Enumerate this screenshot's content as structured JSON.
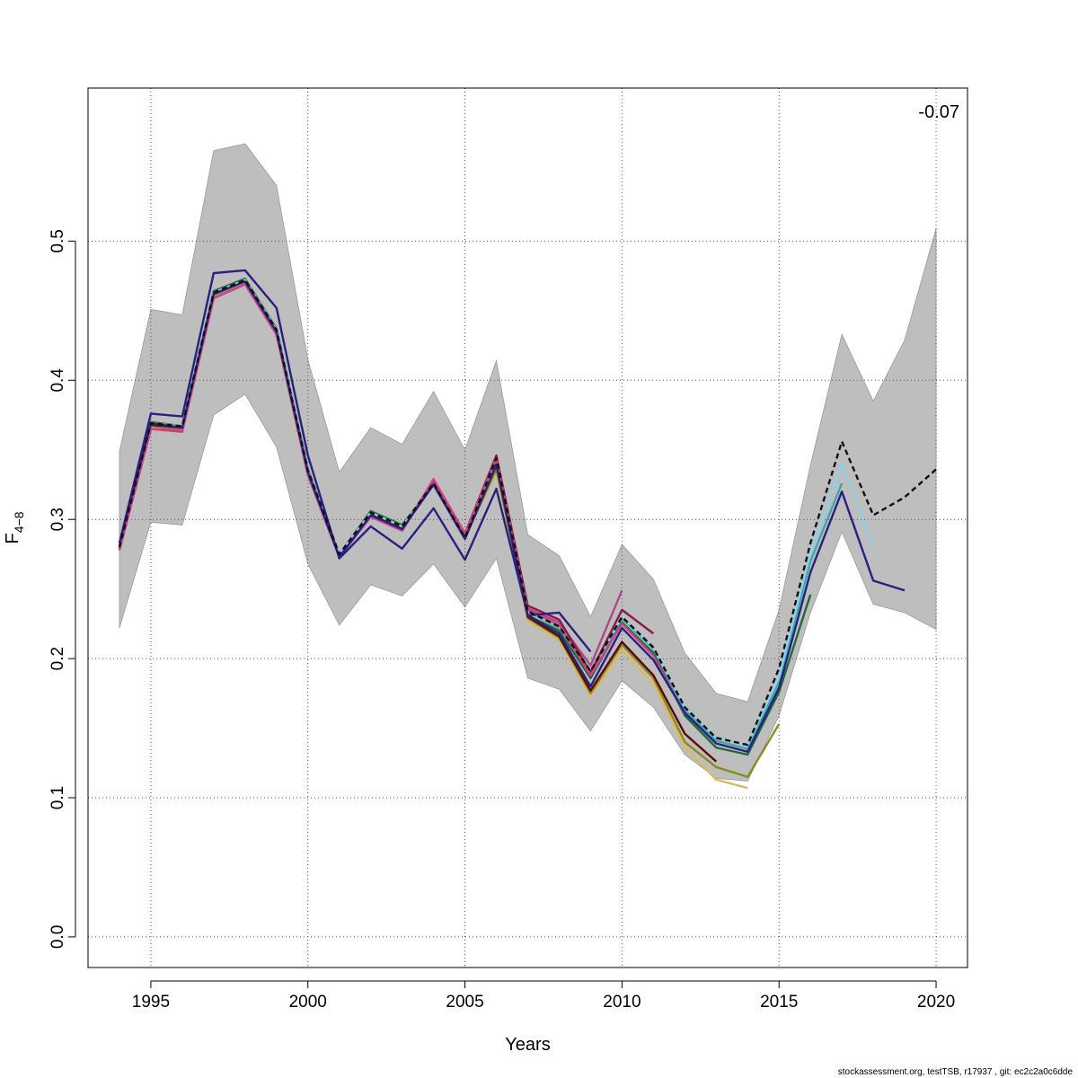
{
  "chart_data": {
    "type": "line",
    "xlabel": "Years",
    "ylabel": "F",
    "ylabel_subscript": "4−8",
    "xlim": [
      1993,
      2021
    ],
    "ylim": [
      -0.022,
      0.61
    ],
    "xticks": [
      1995,
      2000,
      2005,
      2010,
      2015,
      2020
    ],
    "yticks": [
      0.0,
      0.1,
      0.2,
      0.3,
      0.4,
      0.5
    ],
    "ytick_labels": [
      "0.0",
      "0.1",
      "0.2",
      "0.3",
      "0.4",
      "0.5"
    ],
    "grid": true,
    "annotation": "-0.07",
    "footer": "stockassessment.org, testTSB, r17937 , git: ec2c2a0c6dde",
    "band": {
      "x": [
        1994,
        1995,
        1996,
        1997,
        1998,
        1999,
        2000,
        2001,
        2002,
        2003,
        2004,
        2005,
        2006,
        2007,
        2008,
        2009,
        2010,
        2011,
        2012,
        2013,
        2014,
        2015,
        2016,
        2017,
        2018,
        2019,
        2020
      ],
      "upper": [
        0.349,
        0.451,
        0.447,
        0.565,
        0.57,
        0.54,
        0.415,
        0.334,
        0.366,
        0.354,
        0.392,
        0.35,
        0.414,
        0.289,
        0.274,
        0.23,
        0.282,
        0.257,
        0.204,
        0.175,
        0.169,
        0.235,
        0.339,
        0.433,
        0.385,
        0.429,
        0.509
      ],
      "lower": [
        0.222,
        0.298,
        0.296,
        0.375,
        0.39,
        0.352,
        0.268,
        0.224,
        0.253,
        0.245,
        0.268,
        0.237,
        0.272,
        0.186,
        0.178,
        0.148,
        0.184,
        0.165,
        0.131,
        0.114,
        0.112,
        0.159,
        0.233,
        0.291,
        0.239,
        0.233,
        0.221
      ],
      "color": "#bebebe"
    },
    "series": [
      {
        "color": "#daba64",
        "x": [
          1994,
          1995,
          1996,
          1997,
          1998,
          1999,
          2000,
          2001,
          2002,
          2003,
          2004,
          2005,
          2006,
          2007,
          2008,
          2009,
          2010,
          2011,
          2012,
          2013,
          2014
        ],
        "values": [
          0.279,
          0.367,
          0.365,
          0.461,
          0.471,
          0.434,
          0.333,
          0.274,
          0.303,
          0.293,
          0.326,
          0.287,
          0.334,
          0.227,
          0.213,
          0.173,
          0.206,
          0.182,
          0.136,
          0.113,
          0.107
        ]
      },
      {
        "color": "#8b8b1e",
        "x": [
          1994,
          1995,
          1996,
          1997,
          1998,
          1999,
          2000,
          2001,
          2002,
          2003,
          2004,
          2005,
          2006,
          2007,
          2008,
          2009,
          2010,
          2011,
          2012,
          2013,
          2014,
          2015
        ],
        "values": [
          0.279,
          0.367,
          0.365,
          0.461,
          0.471,
          0.434,
          0.333,
          0.274,
          0.303,
          0.293,
          0.326,
          0.287,
          0.336,
          0.229,
          0.215,
          0.175,
          0.21,
          0.186,
          0.14,
          0.122,
          0.115,
          0.153
        ]
      },
      {
        "color": "#5a0a0a",
        "x": [
          1994,
          1995,
          1996,
          1997,
          1998,
          1999,
          2000,
          2001,
          2002,
          2003,
          2004,
          2005,
          2006,
          2007,
          2008,
          2009,
          2010,
          2011,
          2012,
          2013
        ],
        "values": [
          0.279,
          0.368,
          0.366,
          0.462,
          0.472,
          0.435,
          0.334,
          0.274,
          0.304,
          0.294,
          0.327,
          0.288,
          0.34,
          0.23,
          0.216,
          0.177,
          0.212,
          0.188,
          0.146,
          0.126
        ]
      },
      {
        "color": "#1e6b3a",
        "x": [
          1994,
          1995,
          1996,
          1997,
          1998,
          1999,
          2000,
          2001,
          2002,
          2003,
          2004,
          2005,
          2006,
          2007,
          2008,
          2009,
          2010,
          2011,
          2012,
          2013,
          2014,
          2015,
          2016
        ],
        "values": [
          0.281,
          0.37,
          0.367,
          0.464,
          0.473,
          0.437,
          0.336,
          0.275,
          0.306,
          0.296,
          0.325,
          0.286,
          0.344,
          0.231,
          0.22,
          0.186,
          0.226,
          0.204,
          0.159,
          0.136,
          0.131,
          0.176,
          0.246
        ]
      },
      {
        "color": "#3fa8a8",
        "x": [
          1994,
          1995,
          1996,
          1997,
          1998,
          1999,
          2000,
          2001,
          2002,
          2003,
          2004,
          2005,
          2006,
          2007,
          2008,
          2009,
          2010,
          2011,
          2012,
          2013,
          2014,
          2015,
          2016,
          2017
        ],
        "values": [
          0.28,
          0.369,
          0.367,
          0.463,
          0.472,
          0.436,
          0.335,
          0.275,
          0.305,
          0.295,
          0.326,
          0.287,
          0.344,
          0.234,
          0.222,
          0.19,
          0.229,
          0.207,
          0.163,
          0.141,
          0.135,
          0.183,
          0.27,
          0.326
        ]
      },
      {
        "color": "#8fd0e8",
        "x": [
          1994,
          1995,
          1996,
          1997,
          1998,
          1999,
          2000,
          2001,
          2002,
          2003,
          2004,
          2005,
          2006,
          2007,
          2008,
          2009,
          2010,
          2011,
          2012,
          2013,
          2014,
          2015,
          2016,
          2017,
          2018
        ],
        "values": [
          0.28,
          0.369,
          0.367,
          0.463,
          0.472,
          0.436,
          0.335,
          0.275,
          0.305,
          0.295,
          0.326,
          0.287,
          0.344,
          0.234,
          0.223,
          0.191,
          0.23,
          0.208,
          0.165,
          0.143,
          0.138,
          0.187,
          0.276,
          0.34,
          0.28
        ]
      },
      {
        "color": "#a84c8c",
        "x": [
          1994,
          1995,
          1996,
          1997,
          1998,
          1999,
          2000,
          2001,
          2002,
          2003,
          2004,
          2005,
          2006,
          2007,
          2008,
          2009,
          2010
        ],
        "values": [
          0.278,
          0.365,
          0.363,
          0.459,
          0.469,
          0.433,
          0.332,
          0.273,
          0.302,
          0.292,
          0.328,
          0.289,
          0.345,
          0.236,
          0.226,
          0.195,
          0.249
        ]
      },
      {
        "color": "#8b1a4a",
        "x": [
          1994,
          1995,
          1996,
          1997,
          1998,
          1999,
          2000,
          2001,
          2002,
          2003,
          2004,
          2005,
          2006,
          2007,
          2008,
          2009,
          2010,
          2011
        ],
        "values": [
          0.278,
          0.365,
          0.364,
          0.459,
          0.469,
          0.433,
          0.332,
          0.273,
          0.302,
          0.292,
          0.328,
          0.29,
          0.346,
          0.238,
          0.228,
          0.19,
          0.235,
          0.218
        ]
      },
      {
        "color": "#d2418a",
        "x": [
          1994,
          1995,
          1996,
          1997,
          1998,
          1999,
          2000,
          2001,
          2002,
          2003,
          2004,
          2005,
          2006,
          2007,
          2008,
          2009,
          2010,
          2011,
          2012
        ],
        "values": [
          0.278,
          0.365,
          0.364,
          0.459,
          0.469,
          0.433,
          0.332,
          0.273,
          0.302,
          0.292,
          0.329,
          0.29,
          0.344,
          0.235,
          0.224,
          0.188,
          0.225,
          0.202,
          0.16
        ]
      },
      {
        "color": "#2a2080",
        "x": [
          1994,
          1995,
          1996,
          1997,
          1998,
          1999,
          2000,
          2001,
          2002,
          2003,
          2004,
          2005,
          2006,
          2007,
          2008,
          2009
        ],
        "values": [
          0.283,
          0.376,
          0.374,
          0.477,
          0.479,
          0.452,
          0.346,
          0.272,
          0.295,
          0.279,
          0.308,
          0.271,
          0.322,
          0.231,
          0.233,
          0.205
        ]
      },
      {
        "color": "#2a2080",
        "x": [
          1994,
          1995,
          1996,
          1997,
          1998,
          1999,
          2000,
          2001,
          2002,
          2003,
          2004,
          2005,
          2006,
          2007,
          2008,
          2009,
          2010,
          2011,
          2012,
          2013,
          2014,
          2015,
          2016,
          2017,
          2018,
          2019
        ],
        "values": [
          0.283,
          0.369,
          0.366,
          0.462,
          0.471,
          0.435,
          0.334,
          0.273,
          0.303,
          0.293,
          0.325,
          0.286,
          0.339,
          0.231,
          0.218,
          0.18,
          0.222,
          0.199,
          0.161,
          0.139,
          0.133,
          0.179,
          0.262,
          0.32,
          0.256,
          0.249
        ]
      },
      {
        "color": "#111111",
        "dashed": true,
        "x": [
          1994,
          1995,
          1996,
          1997,
          1998,
          1999,
          2000,
          2001,
          2002,
          2003,
          2004,
          2005,
          2006,
          2007,
          2008,
          2009,
          2010,
          2011,
          2012,
          2013,
          2014,
          2015,
          2016,
          2017,
          2018,
          2019,
          2020
        ],
        "values": [
          0.28,
          0.369,
          0.367,
          0.463,
          0.472,
          0.436,
          0.335,
          0.275,
          0.305,
          0.295,
          0.326,
          0.287,
          0.344,
          0.234,
          0.223,
          0.191,
          0.23,
          0.208,
          0.165,
          0.143,
          0.138,
          0.193,
          0.283,
          0.356,
          0.303,
          0.316,
          0.336
        ]
      }
    ]
  }
}
